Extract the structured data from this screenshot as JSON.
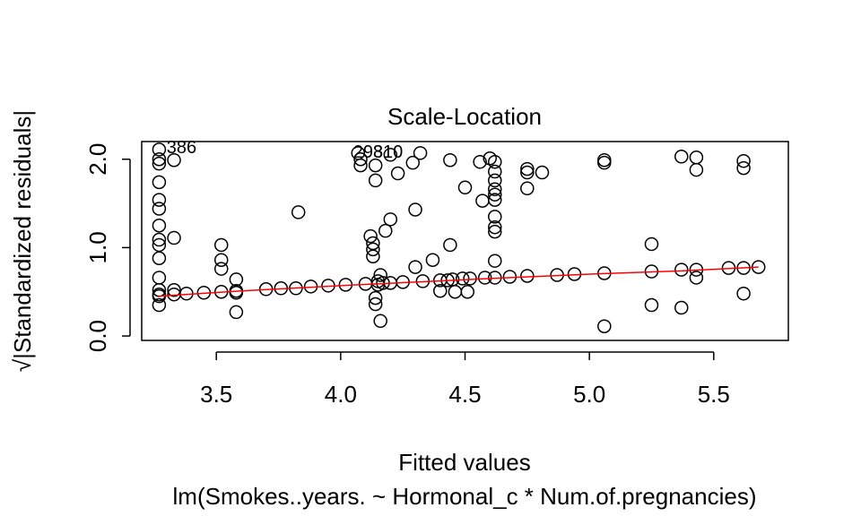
{
  "chart_data": {
    "type": "scatter",
    "title": "Scale-Location",
    "xlabel": "Fitted values",
    "ylabel": "√|Standardized residuals|",
    "subtitle": "lm(Smokes..years. ~ Hormonal_c * Num.of.pregnancies)",
    "xlim": [
      3.2,
      5.8
    ],
    "ylim": [
      -0.05,
      2.2
    ],
    "x_ticks": [
      "3.5",
      "4.0",
      "4.5",
      "5.0",
      "5.5"
    ],
    "y_ticks": [
      "0.0",
      "1.0",
      "2.0"
    ],
    "grid": false,
    "legend": "none",
    "point_color": "#000000",
    "smooth_color": "#ff0000",
    "annotations": [
      {
        "label": "386",
        "x": 3.3,
        "y": 2.13
      },
      {
        "label": "298",
        "x": 4.05,
        "y": 2.08
      },
      {
        "label": "310",
        "x": 4.13,
        "y": 2.08
      }
    ],
    "points": [
      [
        3.27,
        2.11
      ],
      [
        3.27,
        2.0
      ],
      [
        3.27,
        1.95
      ],
      [
        3.27,
        1.74
      ],
      [
        3.27,
        1.54
      ],
      [
        3.27,
        1.44
      ],
      [
        3.27,
        1.25
      ],
      [
        3.27,
        1.09
      ],
      [
        3.27,
        1.03
      ],
      [
        3.27,
        0.88
      ],
      [
        3.27,
        0.66
      ],
      [
        3.27,
        0.52
      ],
      [
        3.27,
        0.47
      ],
      [
        3.27,
        0.45
      ],
      [
        3.27,
        0.35
      ],
      [
        3.33,
        1.99
      ],
      [
        3.33,
        1.11
      ],
      [
        3.33,
        0.52
      ],
      [
        3.33,
        0.47
      ],
      [
        3.38,
        0.48
      ],
      [
        3.45,
        0.49
      ],
      [
        3.52,
        1.03
      ],
      [
        3.52,
        0.86
      ],
      [
        3.52,
        0.76
      ],
      [
        3.52,
        0.5
      ],
      [
        3.58,
        0.64
      ],
      [
        3.58,
        0.51
      ],
      [
        3.58,
        0.49
      ],
      [
        3.58,
        0.27
      ],
      [
        3.7,
        0.53
      ],
      [
        3.76,
        0.54
      ],
      [
        3.82,
        0.54
      ],
      [
        3.83,
        1.4
      ],
      [
        3.88,
        0.56
      ],
      [
        3.95,
        0.57
      ],
      [
        4.02,
        0.58
      ],
      [
        4.07,
        2.07
      ],
      [
        4.08,
        2.0
      ],
      [
        4.08,
        1.93
      ],
      [
        4.1,
        0.59
      ],
      [
        4.12,
        1.13
      ],
      [
        4.13,
        1.05
      ],
      [
        4.13,
        0.98
      ],
      [
        4.13,
        0.9
      ],
      [
        4.14,
        0.43
      ],
      [
        4.14,
        0.36
      ],
      [
        4.14,
        1.76
      ],
      [
        4.14,
        1.93
      ],
      [
        4.15,
        0.58
      ],
      [
        4.15,
        0.62
      ],
      [
        4.16,
        0.69
      ],
      [
        4.16,
        0.17
      ],
      [
        4.17,
        0.6
      ],
      [
        4.18,
        1.19
      ],
      [
        4.2,
        1.32
      ],
      [
        4.2,
        2.05
      ],
      [
        4.2,
        0.6
      ],
      [
        4.23,
        1.84
      ],
      [
        4.25,
        0.61
      ],
      [
        4.29,
        1.96
      ],
      [
        4.3,
        1.43
      ],
      [
        4.3,
        0.78
      ],
      [
        4.32,
        2.07
      ],
      [
        4.33,
        0.62
      ],
      [
        4.37,
        0.86
      ],
      [
        4.4,
        0.63
      ],
      [
        4.4,
        0.51
      ],
      [
        4.43,
        0.63
      ],
      [
        4.44,
        1.03
      ],
      [
        4.44,
        1.99
      ],
      [
        4.45,
        0.64
      ],
      [
        4.46,
        0.5
      ],
      [
        4.49,
        0.65
      ],
      [
        4.5,
        1.68
      ],
      [
        4.51,
        0.5
      ],
      [
        4.52,
        0.65
      ],
      [
        4.56,
        1.97
      ],
      [
        4.57,
        1.53
      ],
      [
        4.58,
        0.66
      ],
      [
        4.6,
        2.01
      ],
      [
        4.62,
        1.97
      ],
      [
        4.62,
        1.86
      ],
      [
        4.62,
        1.76
      ],
      [
        4.62,
        1.66
      ],
      [
        4.62,
        1.6
      ],
      [
        4.62,
        1.54
      ],
      [
        4.62,
        1.35
      ],
      [
        4.62,
        1.23
      ],
      [
        4.62,
        1.18
      ],
      [
        4.62,
        0.85
      ],
      [
        4.62,
        0.66
      ],
      [
        4.68,
        0.67
      ],
      [
        4.75,
        1.89
      ],
      [
        4.75,
        1.85
      ],
      [
        4.75,
        1.67
      ],
      [
        4.75,
        0.68
      ],
      [
        4.81,
        1.85
      ],
      [
        4.87,
        0.69
      ],
      [
        4.94,
        0.7
      ],
      [
        5.06,
        1.99
      ],
      [
        5.06,
        1.96
      ],
      [
        5.06,
        0.71
      ],
      [
        5.06,
        0.11
      ],
      [
        5.25,
        1.04
      ],
      [
        5.25,
        0.73
      ],
      [
        5.25,
        0.35
      ],
      [
        5.37,
        2.03
      ],
      [
        5.37,
        0.75
      ],
      [
        5.37,
        0.32
      ],
      [
        5.43,
        2.02
      ],
      [
        5.43,
        1.88
      ],
      [
        5.43,
        0.75
      ],
      [
        5.43,
        0.66
      ],
      [
        5.56,
        0.77
      ],
      [
        5.62,
        1.98
      ],
      [
        5.62,
        1.9
      ],
      [
        5.62,
        0.77
      ],
      [
        5.62,
        0.48
      ],
      [
        5.68,
        0.78
      ]
    ],
    "smooth_line": [
      [
        3.27,
        0.45
      ],
      [
        3.6,
        0.51
      ],
      [
        4.0,
        0.57
      ],
      [
        4.3,
        0.61
      ],
      [
        4.6,
        0.65
      ],
      [
        5.0,
        0.7
      ],
      [
        5.4,
        0.74
      ],
      [
        5.68,
        0.78
      ]
    ]
  }
}
